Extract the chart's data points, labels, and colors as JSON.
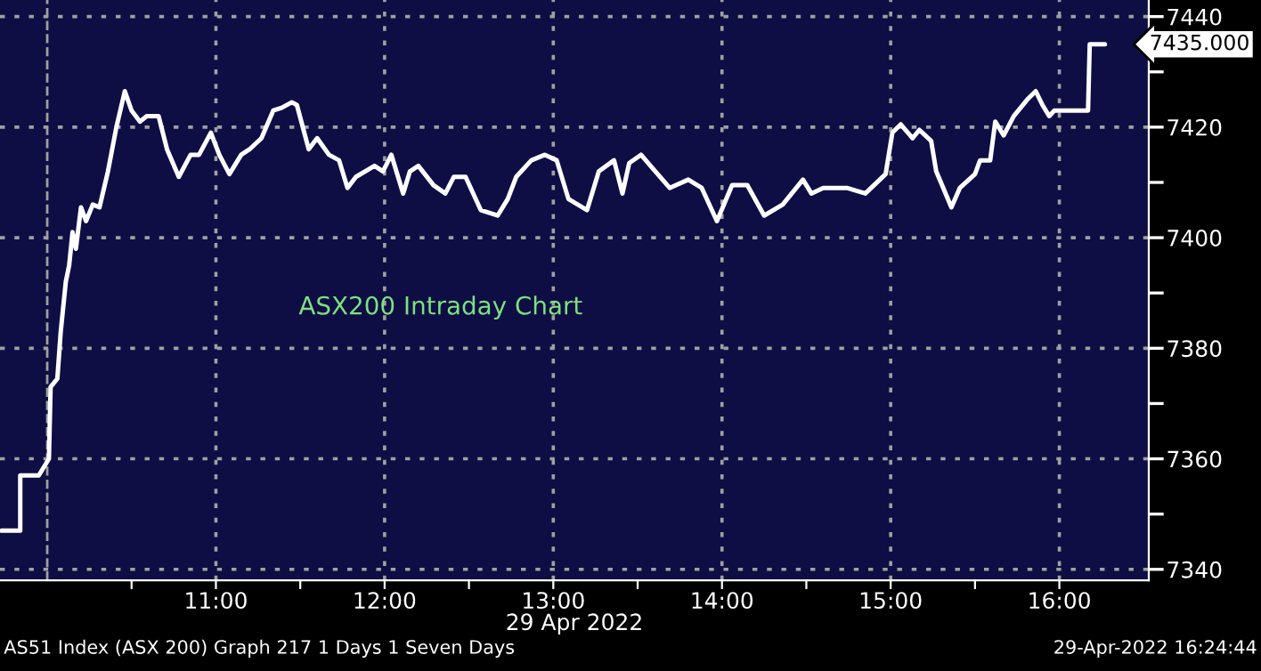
{
  "chart_data": {
    "type": "line",
    "xlabel": "29 Apr 2022",
    "x": [
      9.73,
      9.84,
      9.84,
      9.95,
      10.01,
      10.02,
      10.06,
      10.08,
      10.11,
      10.13,
      10.15,
      10.17,
      10.2,
      10.23,
      10.27,
      10.31,
      10.36,
      10.41,
      10.46,
      10.5,
      10.55,
      10.59,
      10.66,
      10.71,
      10.78,
      10.85,
      10.9,
      10.97,
      11.02,
      11.08,
      11.15,
      11.2,
      11.27,
      11.34,
      11.39,
      11.45,
      11.48,
      11.55,
      11.6,
      11.67,
      11.73,
      11.78,
      11.83,
      11.94,
      11.99,
      12.04,
      12.11,
      12.15,
      12.2,
      12.29,
      12.36,
      12.41,
      12.48,
      12.57,
      12.67,
      12.73,
      12.78,
      12.87,
      12.95,
      13.02,
      13.09,
      13.2,
      13.27,
      13.36,
      13.41,
      13.45,
      13.52,
      13.59,
      13.69,
      13.8,
      13.88,
      13.97,
      14.06,
      14.15,
      14.25,
      14.36,
      14.48,
      14.53,
      14.6,
      14.74,
      14.85,
      14.97,
      15.01,
      15.06,
      15.13,
      15.17,
      15.24,
      15.27,
      15.36,
      15.41,
      15.5,
      15.53,
      15.59,
      15.62,
      15.67,
      15.73,
      15.81,
      15.86,
      15.9,
      15.94,
      15.97,
      16.01,
      16.17,
      16.18,
      16.27
    ],
    "series": [
      {
        "color": "#ffffff",
        "values": [
          7347,
          7347,
          7357,
          7357,
          7360,
          7373,
          7374.5,
          7383,
          7392,
          7395,
          7401,
          7398,
          7405.5,
          7403,
          7406,
          7405.5,
          7412,
          7420,
          7426.5,
          7423,
          7421,
          7422,
          7422,
          7416,
          7411,
          7415,
          7415,
          7419,
          7415,
          7411.5,
          7415,
          7416,
          7418,
          7423,
          7423.5,
          7424.5,
          7424,
          7416,
          7418,
          7415,
          7414,
          7409,
          7411,
          7413,
          7412,
          7415,
          7408,
          7412,
          7413,
          7409.5,
          7408,
          7411,
          7411,
          7405,
          7404,
          7407,
          7411,
          7414,
          7415,
          7414,
          7407,
          7405,
          7412,
          7414,
          7408,
          7413.5,
          7415,
          7412.5,
          7409,
          7410.5,
          7409,
          7403,
          7409.5,
          7409.5,
          7404,
          7406,
          7410.5,
          7408,
          7409,
          7409,
          7408,
          7411.5,
          7419,
          7420.5,
          7418,
          7419.5,
          7417.5,
          7412,
          7405.5,
          7409,
          7411.5,
          7414,
          7414,
          7421,
          7418.5,
          7422,
          7425,
          7426.5,
          7424,
          7422,
          7423,
          7423,
          7423,
          7435,
          7435
        ]
      }
    ],
    "xlim": [
      9.72,
      16.53
    ],
    "ylim": [
      7338,
      7443
    ],
    "xticks": [
      {
        "value": 10.5,
        "label": null
      },
      {
        "value": 11,
        "label": "11:00"
      },
      {
        "value": 11.5,
        "label": null
      },
      {
        "value": 12,
        "label": "12:00"
      },
      {
        "value": 12.5,
        "label": null
      },
      {
        "value": 13,
        "label": "13:00"
      },
      {
        "value": 13.5,
        "label": null
      },
      {
        "value": 14,
        "label": "14:00"
      },
      {
        "value": 14.5,
        "label": null
      },
      {
        "value": 15,
        "label": "15:00"
      },
      {
        "value": 15.5,
        "label": null
      },
      {
        "value": 16,
        "label": "16:00"
      }
    ],
    "yticks": [
      7340,
      {
        "value": 7350,
        "label": null
      },
      7360,
      {
        "value": 7370,
        "label": null
      },
      7380,
      {
        "value": 7390,
        "label": null
      },
      7400,
      {
        "value": 7410,
        "label": null
      },
      7420,
      {
        "value": 7430,
        "label": null
      },
      7440
    ],
    "ref_lines": [
      {
        "axis": "x",
        "value": 10,
        "color": "#a0a0a0",
        "line_style": "dashed"
      }
    ],
    "grid": true,
    "line_style": "solid",
    "marker": "none",
    "annotations": [
      "ASX200 Intraday Chart",
      {
        "text": "7435.000",
        "x": 16.27,
        "y": 7435
      },
      "AS51 Index (ASX 200) Graph 217 1 Days 1 Seven Days",
      "29-Apr-2022 16:24:44"
    ]
  }
}
